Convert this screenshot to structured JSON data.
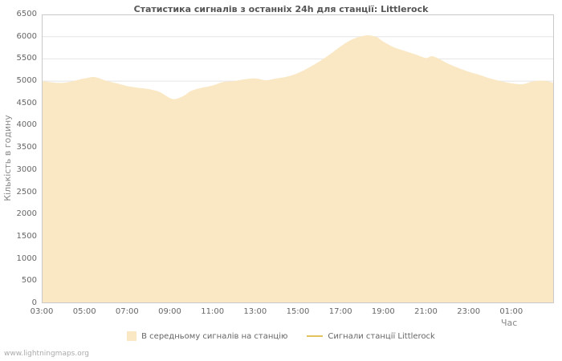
{
  "watermark": "www.lightningmaps.org",
  "chart_data": {
    "type": "area",
    "title": "Статистика сигналів з останніх 24h для станції: Littlerock",
    "ylabel": "Кількість в годину",
    "xlabel": "Час",
    "ylim": [
      0,
      6500
    ],
    "yticks": [
      0,
      500,
      1000,
      1500,
      2000,
      2500,
      3000,
      3500,
      4000,
      4500,
      5000,
      5500,
      6000,
      6500
    ],
    "x_range_hours": [
      3,
      27
    ],
    "xticks": [
      {
        "hour": 3,
        "label": "03:00"
      },
      {
        "hour": 5,
        "label": "05:00"
      },
      {
        "hour": 7,
        "label": "07:00"
      },
      {
        "hour": 9,
        "label": "09:00"
      },
      {
        "hour": 11,
        "label": "11:00"
      },
      {
        "hour": 13,
        "label": "13:00"
      },
      {
        "hour": 15,
        "label": "15:00"
      },
      {
        "hour": 17,
        "label": "17:00"
      },
      {
        "hour": 19,
        "label": "19:00"
      },
      {
        "hour": 21,
        "label": "21:00"
      },
      {
        "hour": 23,
        "label": "23:00"
      },
      {
        "hour": 25,
        "label": "01:00"
      }
    ],
    "grid": "horizontal",
    "legend_position": "bottom",
    "series": [
      {
        "name": "В середньому сигналів на станцію",
        "type": "area",
        "color": "#fae8c5",
        "x_hours": [
          3,
          4,
          5,
          5.5,
          6,
          6.5,
          7,
          7.5,
          8,
          8.5,
          9,
          9.3,
          9.7,
          10,
          10.5,
          11,
          11.5,
          12,
          12.5,
          13,
          13.5,
          14,
          14.5,
          15,
          15.5,
          16,
          16.5,
          17,
          17.5,
          18,
          18.3,
          18.7,
          19,
          19.5,
          20,
          20.5,
          21,
          21.3,
          21.7,
          22,
          22.5,
          23,
          23.5,
          24,
          24.5,
          25,
          25.5,
          26,
          26.5,
          27
        ],
        "values": [
          5000,
          4960,
          5060,
          5090,
          5010,
          4950,
          4890,
          4850,
          4820,
          4760,
          4620,
          4600,
          4680,
          4780,
          4850,
          4900,
          4980,
          5000,
          5040,
          5060,
          5020,
          5060,
          5100,
          5180,
          5300,
          5440,
          5600,
          5780,
          5930,
          6010,
          6030,
          5990,
          5890,
          5760,
          5680,
          5600,
          5520,
          5560,
          5480,
          5400,
          5300,
          5210,
          5140,
          5060,
          5000,
          4950,
          4930,
          4990,
          5010,
          4960
        ]
      },
      {
        "name": "Сигнали станції Littlerock",
        "type": "line",
        "color": "#e2c45f",
        "x_hours": [],
        "values": []
      }
    ]
  }
}
